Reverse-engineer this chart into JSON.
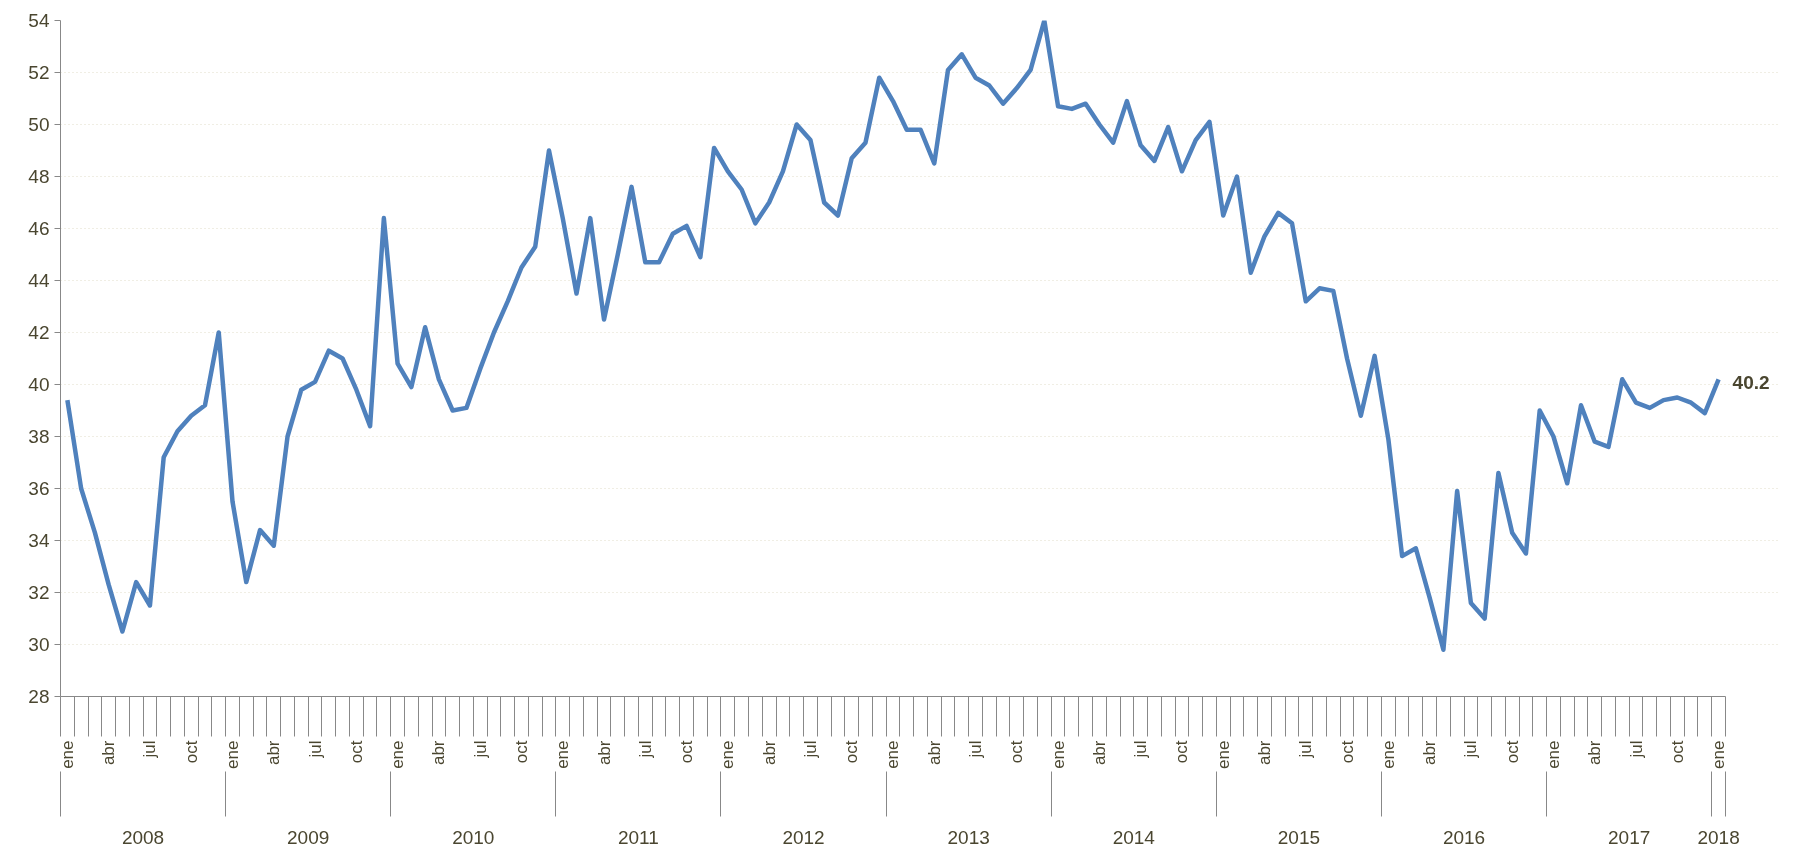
{
  "chart_data": {
    "type": "line",
    "categories": [
      "ene",
      null,
      null,
      "abr",
      null,
      null,
      "jul",
      null,
      null,
      "oct",
      null,
      null,
      "ene",
      null,
      null,
      "abr",
      null,
      null,
      "jul",
      null,
      null,
      "oct",
      null,
      null,
      "ene",
      null,
      null,
      "abr",
      null,
      null,
      "jul",
      null,
      null,
      "oct",
      null,
      null,
      "ene",
      null,
      null,
      "abr",
      null,
      null,
      "jul",
      null,
      null,
      "oct",
      null,
      null,
      "ene",
      null,
      null,
      "abr",
      null,
      null,
      "jul",
      null,
      null,
      "oct",
      null,
      null,
      "ene",
      null,
      null,
      "abr",
      null,
      null,
      "jul",
      null,
      null,
      "oct",
      null,
      null,
      "ene",
      null,
      null,
      "abr",
      null,
      null,
      "jul",
      null,
      null,
      "oct",
      null,
      null,
      "ene",
      null,
      null,
      "abr",
      null,
      null,
      "jul",
      null,
      null,
      "oct",
      null,
      null,
      "ene",
      null,
      null,
      "abr",
      null,
      null,
      "jul",
      null,
      null,
      "oct",
      null,
      null,
      "ene",
      null,
      null,
      "abr",
      null,
      null,
      "jul",
      null,
      null,
      "oct",
      null,
      null,
      "ene"
    ],
    "annotations": [
      "2008",
      "2009",
      "2010",
      "2011",
      "2012",
      "2013",
      "2014",
      "2015",
      "2016",
      "2017",
      "2018"
    ],
    "series": [
      {
        "color": "#4f81bd",
        "values": [
          39.4,
          36.0,
          34.3,
          32.3,
          30.5,
          32.4,
          31.5,
          37.2,
          38.2,
          38.8,
          39.2,
          42.0,
          35.5,
          32.4,
          34.4,
          33.8,
          38.0,
          39.8,
          40.1,
          41.3,
          41.0,
          39.8,
          38.4,
          46.4,
          40.8,
          39.9,
          42.2,
          40.2,
          39.0,
          39.1,
          40.6,
          42.0,
          43.2,
          44.5,
          45.3,
          49.0,
          46.4,
          43.5,
          46.4,
          42.5,
          45.0,
          47.6,
          44.7,
          44.7,
          45.8,
          46.1,
          44.9,
          49.1,
          48.2,
          47.5,
          46.2,
          47.0,
          48.2,
          50.0,
          49.4,
          47.0,
          46.5,
          48.7,
          49.3,
          51.8,
          50.9,
          49.8,
          49.8,
          48.5,
          52.1,
          52.7,
          51.8,
          51.5,
          50.8,
          51.4,
          52.1,
          54.0,
          50.7,
          50.6,
          50.8,
          50.0,
          49.3,
          50.9,
          49.2,
          48.6,
          49.9,
          48.2,
          49.4,
          50.1,
          46.5,
          48.0,
          44.3,
          45.7,
          46.6,
          46.2,
          43.2,
          43.7,
          43.6,
          41.0,
          38.8,
          41.1,
          37.9,
          33.4,
          33.7,
          31.8,
          29.8,
          35.9,
          31.6,
          31.0,
          36.6,
          34.3,
          33.5,
          39.0,
          38.0,
          36.2,
          39.2,
          37.8,
          37.6,
          40.2,
          39.3,
          39.1,
          39.4,
          39.5,
          39.3,
          38.9,
          40.2
        ],
        "value_labels": [
          null,
          null,
          null,
          null,
          null,
          null,
          null,
          null,
          null,
          null,
          null,
          null,
          null,
          null,
          null,
          null,
          null,
          null,
          null,
          null,
          null,
          null,
          null,
          null,
          null,
          null,
          null,
          null,
          null,
          null,
          null,
          null,
          null,
          null,
          null,
          null,
          null,
          null,
          null,
          null,
          null,
          null,
          null,
          null,
          null,
          null,
          null,
          null,
          null,
          null,
          null,
          null,
          null,
          null,
          null,
          null,
          null,
          null,
          null,
          null,
          null,
          null,
          null,
          null,
          null,
          null,
          null,
          null,
          null,
          null,
          null,
          null,
          null,
          null,
          null,
          null,
          null,
          null,
          null,
          null,
          null,
          null,
          null,
          null,
          null,
          null,
          null,
          null,
          null,
          null,
          null,
          null,
          null,
          null,
          null,
          null,
          null,
          null,
          null,
          null,
          null,
          null,
          null,
          null,
          null,
          null,
          null,
          null,
          null,
          null,
          null,
          null,
          null,
          null,
          null,
          null,
          null,
          null,
          null,
          null,
          "40.2"
        ]
      }
    ],
    "ylim": [
      28,
      54
    ],
    "yticks": [
      28,
      30,
      32,
      34,
      36,
      38,
      40,
      42,
      44,
      46,
      48,
      50,
      52,
      54
    ],
    "grid": "y",
    "marker": "none",
    "line_style": "solid"
  }
}
